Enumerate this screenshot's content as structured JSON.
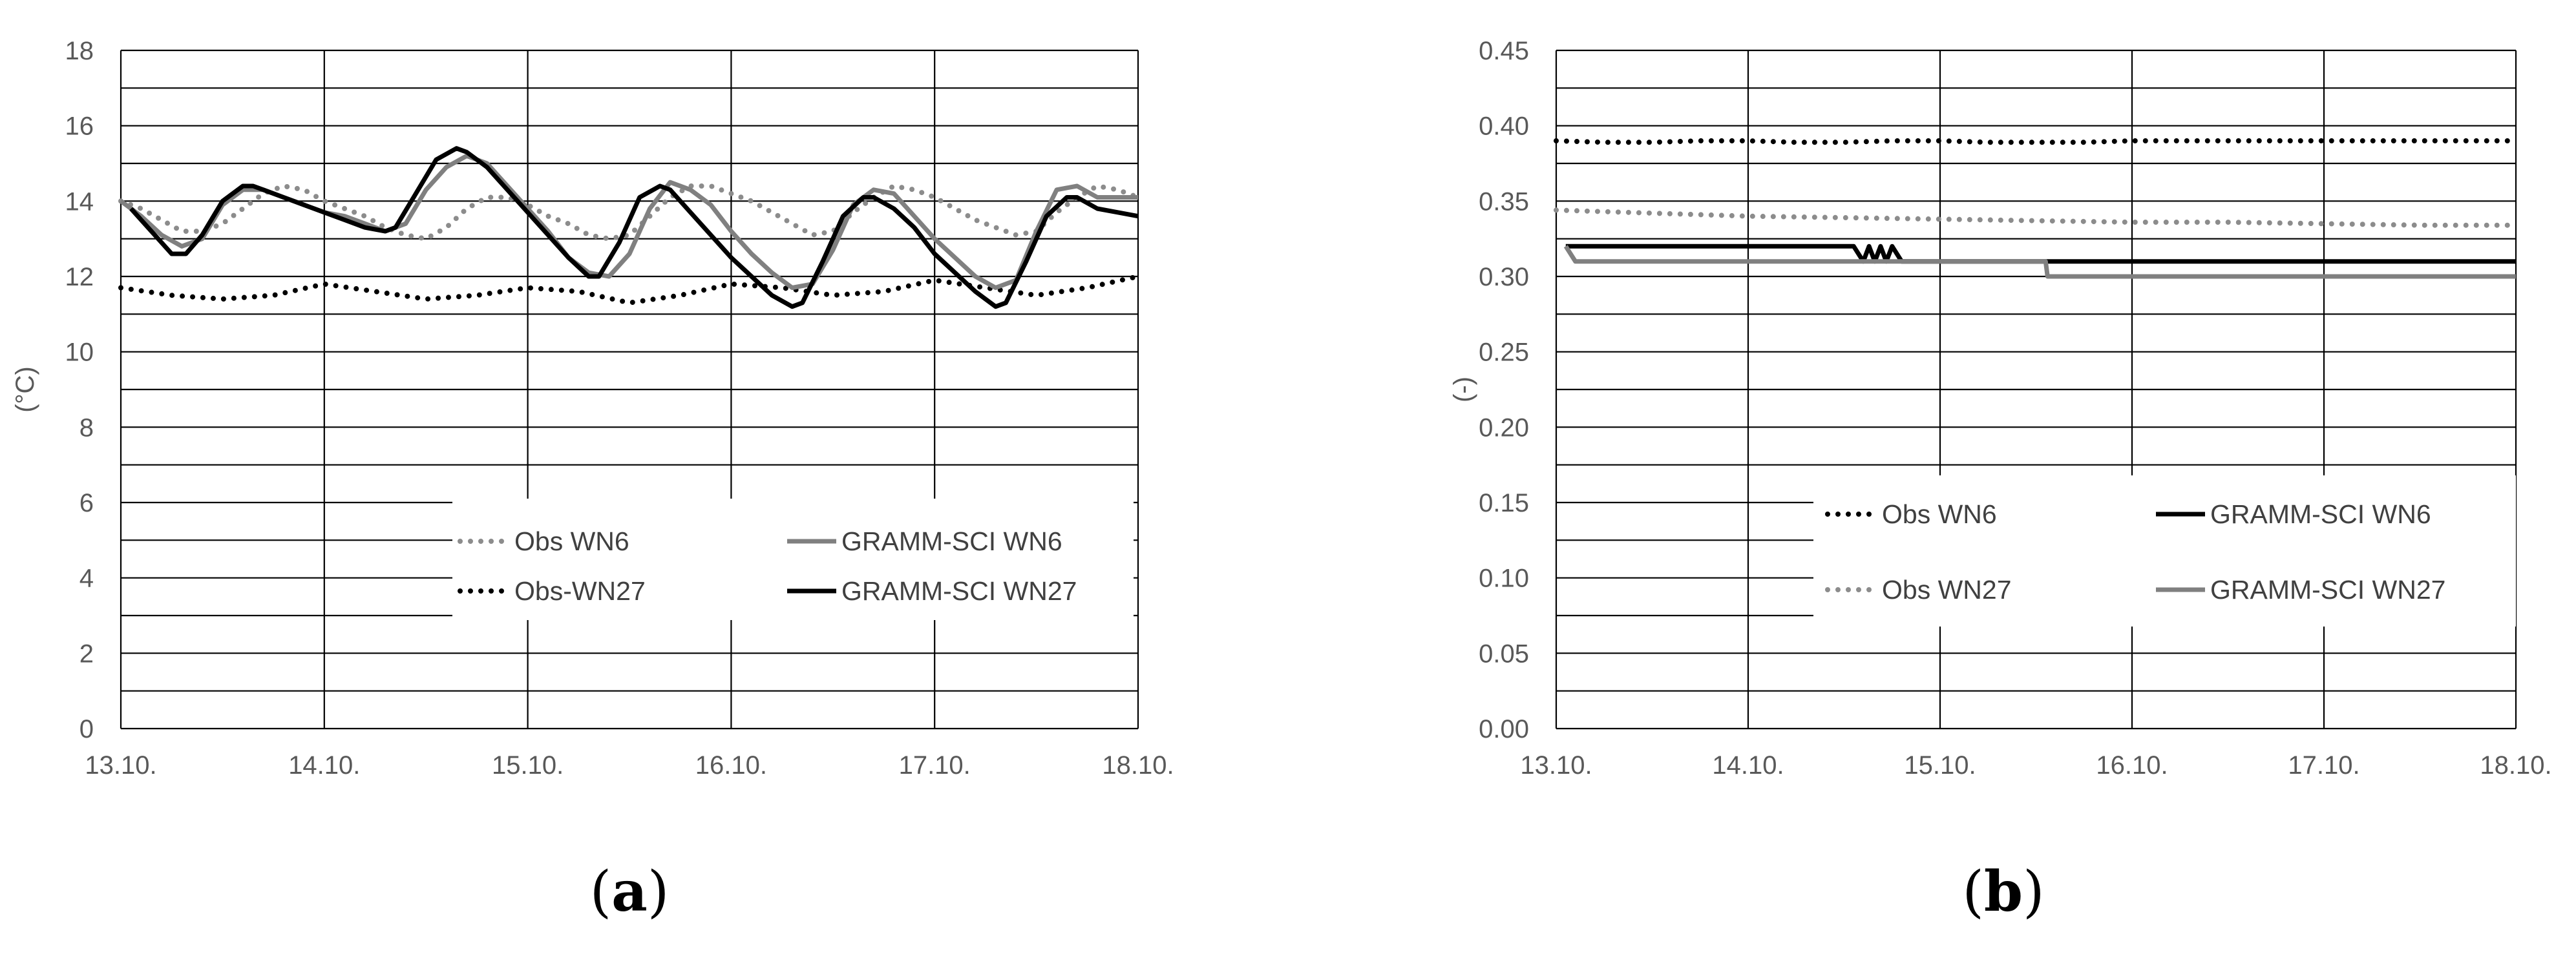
{
  "chart_data": [
    {
      "type": "line",
      "panel_label": "a",
      "ylabel": "(°C)",
      "x_ticks": [
        "13.10.",
        "14.10.",
        "15.10.",
        "16.10.",
        "17.10.",
        "18.10."
      ],
      "y_ticks": [
        "0",
        "2",
        "4",
        "6",
        "8",
        "10",
        "12",
        "14",
        "16",
        "18"
      ],
      "xlim": [
        0,
        5
      ],
      "ylim": [
        0,
        18
      ],
      "grid": true,
      "legend_position": "bottom-center",
      "series": [
        {
          "name": "Obs WN6",
          "color": "#8c8c8c",
          "style": "dotted",
          "x": [
            0,
            0.1,
            0.2,
            0.3,
            0.4,
            0.5,
            0.6,
            0.7,
            0.8,
            0.9,
            1.0,
            1.1,
            1.2,
            1.3,
            1.4,
            1.5,
            1.6,
            1.7,
            1.8,
            1.9,
            2.0,
            2.1,
            2.2,
            2.3,
            2.4,
            2.5,
            2.6,
            2.7,
            2.8,
            2.9,
            3.0,
            3.1,
            3.2,
            3.3,
            3.4,
            3.5,
            3.6,
            3.7,
            3.8,
            3.9,
            4.0,
            4.1,
            4.2,
            4.3,
            4.4,
            4.5,
            4.6,
            4.7,
            4.8,
            4.9,
            5.0
          ],
          "y": [
            14.0,
            13.8,
            13.5,
            13.2,
            13.2,
            13.4,
            13.8,
            14.2,
            14.4,
            14.3,
            14.0,
            13.8,
            13.6,
            13.3,
            13.1,
            13.0,
            13.3,
            13.8,
            14.1,
            14.1,
            13.9,
            13.6,
            13.4,
            13.1,
            13.0,
            13.1,
            13.6,
            14.1,
            14.4,
            14.4,
            14.2,
            14.0,
            13.7,
            13.4,
            13.1,
            13.2,
            13.7,
            14.1,
            14.4,
            14.3,
            14.1,
            13.8,
            13.5,
            13.3,
            13.1,
            13.2,
            13.7,
            14.1,
            14.4,
            14.3,
            14.1
          ]
        },
        {
          "name": "Obs-WN27",
          "color": "#000000",
          "style": "dotted",
          "x": [
            0,
            0.25,
            0.5,
            0.75,
            1.0,
            1.25,
            1.5,
            1.75,
            2.0,
            2.25,
            2.5,
            2.75,
            3.0,
            3.25,
            3.5,
            3.75,
            4.0,
            4.25,
            4.5,
            4.75,
            5.0
          ],
          "y": [
            11.7,
            11.5,
            11.4,
            11.5,
            11.8,
            11.6,
            11.4,
            11.5,
            11.7,
            11.6,
            11.3,
            11.5,
            11.8,
            11.7,
            11.5,
            11.6,
            11.9,
            11.7,
            11.5,
            11.7,
            12.0
          ]
        },
        {
          "name": "GRAMM-SCI WN6",
          "color": "#808080",
          "style": "solid",
          "x": [
            0,
            0.1,
            0.2,
            0.3,
            0.4,
            0.5,
            0.6,
            0.7,
            0.8,
            0.9,
            1.0,
            1.1,
            1.2,
            1.3,
            1.4,
            1.5,
            1.6,
            1.7,
            1.8,
            1.9,
            2.0,
            2.1,
            2.2,
            2.3,
            2.4,
            2.5,
            2.6,
            2.7,
            2.8,
            2.9,
            3.0,
            3.1,
            3.2,
            3.3,
            3.4,
            3.5,
            3.6,
            3.7,
            3.8,
            3.9,
            4.0,
            4.1,
            4.2,
            4.3,
            4.4,
            4.5,
            4.6,
            4.7,
            4.8,
            4.9,
            5.0
          ],
          "y": [
            14.0,
            13.6,
            13.1,
            12.8,
            13.0,
            13.9,
            14.3,
            14.3,
            14.1,
            13.9,
            13.7,
            13.6,
            13.4,
            13.2,
            13.4,
            14.3,
            14.9,
            15.2,
            15.0,
            14.4,
            13.8,
            13.2,
            12.5,
            12.1,
            12.0,
            12.6,
            13.8,
            14.5,
            14.3,
            13.9,
            13.2,
            12.6,
            12.1,
            11.7,
            11.8,
            12.7,
            13.9,
            14.3,
            14.2,
            13.6,
            13.0,
            12.5,
            12.0,
            11.7,
            11.9,
            13.2,
            14.3,
            14.4,
            14.1,
            14.1,
            14.1
          ]
        },
        {
          "name": "GRAMM-SCI WN27",
          "color": "#000000",
          "style": "solid",
          "x": [
            0.05,
            0.15,
            0.25,
            0.32,
            0.4,
            0.5,
            0.6,
            0.65,
            0.7,
            0.8,
            0.9,
            1.0,
            1.1,
            1.2,
            1.3,
            1.35,
            1.45,
            1.55,
            1.65,
            1.7,
            1.8,
            1.9,
            2.0,
            2.1,
            2.2,
            2.3,
            2.35,
            2.45,
            2.55,
            2.65,
            2.7,
            2.8,
            2.9,
            3.0,
            3.1,
            3.2,
            3.3,
            3.35,
            3.45,
            3.55,
            3.65,
            3.7,
            3.8,
            3.9,
            4.0,
            4.1,
            4.2,
            4.3,
            4.35,
            4.45,
            4.55,
            4.65,
            4.7,
            4.8,
            4.9,
            5.0
          ],
          "y": [
            13.8,
            13.2,
            12.6,
            12.6,
            13.1,
            14.0,
            14.4,
            14.4,
            14.3,
            14.1,
            13.9,
            13.7,
            13.5,
            13.3,
            13.2,
            13.3,
            14.2,
            15.1,
            15.4,
            15.3,
            14.9,
            14.3,
            13.7,
            13.1,
            12.5,
            12.0,
            12.0,
            12.9,
            14.1,
            14.4,
            14.3,
            13.7,
            13.1,
            12.5,
            12.0,
            11.5,
            11.2,
            11.3,
            12.4,
            13.6,
            14.1,
            14.1,
            13.8,
            13.3,
            12.6,
            12.1,
            11.6,
            11.2,
            11.3,
            12.4,
            13.6,
            14.1,
            14.1,
            13.8,
            13.7,
            13.6
          ]
        }
      ]
    },
    {
      "type": "line",
      "panel_label": "b",
      "ylabel": "(-)",
      "x_ticks": [
        "13.10.",
        "14.10.",
        "15.10.",
        "16.10.",
        "17.10.",
        "18.10."
      ],
      "y_ticks": [
        "0.00",
        "0.05",
        "0.10",
        "0.15",
        "0.20",
        "0.25",
        "0.30",
        "0.35",
        "0.40",
        "0.45"
      ],
      "xlim": [
        0,
        5
      ],
      "ylim": [
        0,
        0.45
      ],
      "grid": true,
      "legend_position": "bottom-center",
      "series": [
        {
          "name": "Obs WN6",
          "color": "#000000",
          "style": "dotted",
          "x": [
            0,
            0.25,
            0.5,
            0.75,
            1.0,
            1.25,
            1.5,
            1.75,
            2.0,
            2.25,
            2.5,
            2.75,
            3.0,
            3.25,
            3.5,
            3.75,
            4.0,
            4.25,
            4.5,
            4.75,
            5.0
          ],
          "y": [
            0.39,
            0.389,
            0.389,
            0.39,
            0.39,
            0.389,
            0.389,
            0.39,
            0.39,
            0.389,
            0.389,
            0.389,
            0.39,
            0.39,
            0.39,
            0.39,
            0.39,
            0.39,
            0.39,
            0.39,
            0.39
          ]
        },
        {
          "name": "GRAMM-SCI WN6",
          "color": "#000000",
          "style": "solid",
          "x": [
            0.05,
            1.55,
            1.6,
            1.63,
            1.66,
            1.69,
            1.72,
            1.75,
            1.8,
            2.0,
            3.0,
            4.0,
            5.0
          ],
          "y": [
            0.32,
            0.32,
            0.31,
            0.32,
            0.31,
            0.32,
            0.31,
            0.32,
            0.31,
            0.31,
            0.31,
            0.31,
            0.31
          ]
        },
        {
          "name": "Obs WN27",
          "color": "#8c8c8c",
          "style": "dotted",
          "x": [
            0,
            0.5,
            1.0,
            1.5,
            2.0,
            2.5,
            3.0,
            3.5,
            4.0,
            4.5,
            5.0
          ],
          "y": [
            0.344,
            0.342,
            0.34,
            0.339,
            0.338,
            0.337,
            0.336,
            0.336,
            0.335,
            0.334,
            0.334
          ]
        },
        {
          "name": "GRAMM-SCI WN27",
          "color": "#808080",
          "style": "solid",
          "x": [
            0.05,
            0.1,
            0.5,
            1.0,
            2.0,
            2.5,
            2.55,
            2.56,
            3.0,
            4.0,
            5.0
          ],
          "y": [
            0.32,
            0.31,
            0.31,
            0.31,
            0.31,
            0.31,
            0.31,
            0.3,
            0.3,
            0.3,
            0.3
          ]
        }
      ]
    }
  ]
}
